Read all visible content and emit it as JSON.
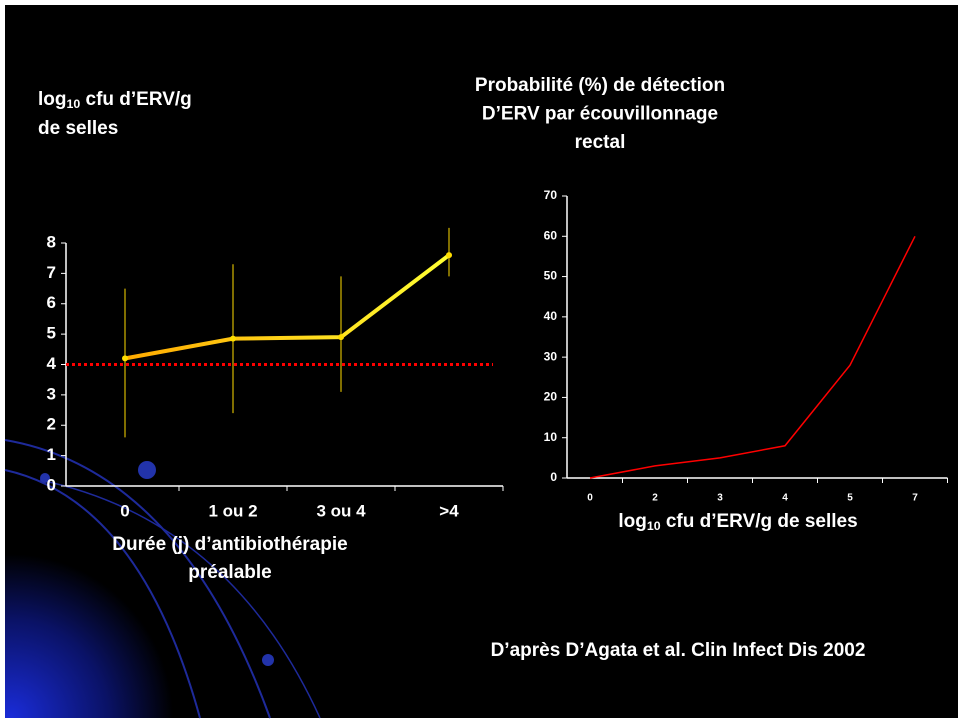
{
  "chart_data": [
    {
      "type": "line",
      "ylabel": [
        "log",
        "10",
        " cfu d’ERV/g",
        "de selles"
      ],
      "xlabel": [
        "Durée (j) d’antibiothérapie",
        "préalable"
      ],
      "categories": [
        "0",
        "1 ou 2",
        "3 ou 4",
        ">4"
      ],
      "values": [
        4.2,
        4.85,
        4.9,
        7.6
      ],
      "error_low": [
        1.6,
        2.4,
        3.1,
        6.9
      ],
      "error_high": [
        6.5,
        7.3,
        6.9,
        8.5
      ],
      "color": "#ffdd00",
      "reference_line": {
        "value": 4,
        "color": "#ff0000"
      },
      "ylim": [
        0,
        8
      ],
      "yticks": [
        0,
        1,
        2,
        3,
        4,
        5,
        6,
        7,
        8
      ]
    },
    {
      "type": "line",
      "title": [
        "Probabilité (%) de détection",
        "D’ERV par écouvillonnage",
        "rectal"
      ],
      "xlabel": [
        "log",
        "10",
        " cfu d’ERV/g de selles"
      ],
      "categories": [
        "0",
        "2",
        "3",
        "4",
        "5",
        "7"
      ],
      "values": [
        0,
        3,
        5,
        8,
        28,
        60
      ],
      "color": "#ff0000",
      "ylim": [
        0,
        70
      ],
      "yticks": [
        0,
        10,
        20,
        30,
        40,
        50,
        60,
        70
      ]
    }
  ],
  "source": "D’après D’Agata et al. Clin Infect Dis 2002"
}
